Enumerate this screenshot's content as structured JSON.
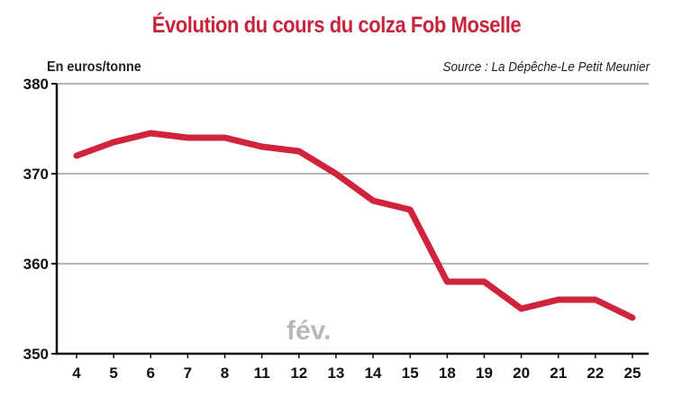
{
  "chart_data": {
    "type": "line",
    "title": "Évolution du cours du colza Fob Moselle",
    "ylabel": "En euros/tonne",
    "source": "Source : La Dépêche-Le Petit Meunier",
    "month_label": "fév.",
    "categories": [
      "4",
      "5",
      "6",
      "7",
      "8",
      "11",
      "12",
      "13",
      "14",
      "15",
      "18",
      "19",
      "20",
      "21",
      "22",
      "25"
    ],
    "values": [
      372,
      373.5,
      374.5,
      374,
      374,
      373,
      372.5,
      370,
      367,
      366,
      358,
      358,
      355,
      356,
      356,
      354
    ],
    "yticks": [
      350,
      360,
      370,
      380
    ],
    "ylim": [
      350,
      380
    ],
    "grid": true,
    "colors": {
      "line": "#d0243c",
      "title": "#c8233d",
      "grid": "#8a8a8a",
      "axis": "#111111"
    }
  }
}
